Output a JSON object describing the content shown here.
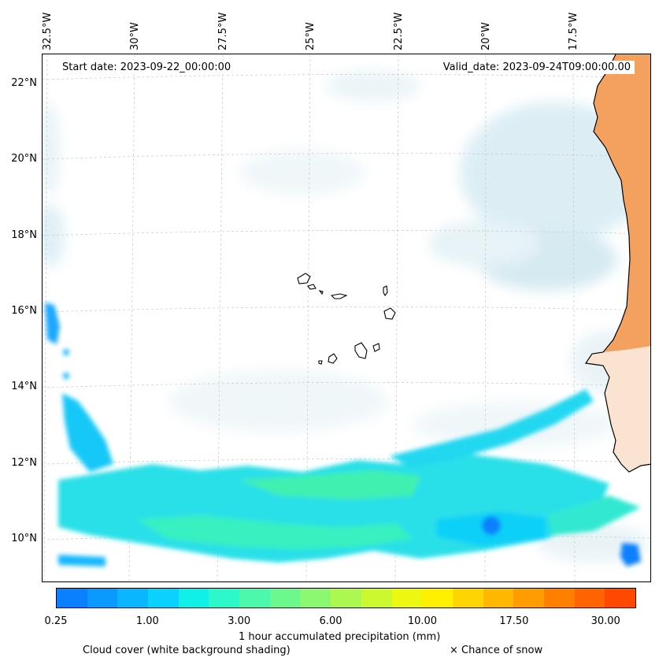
{
  "map": {
    "start_date": "Start date: 2023-09-22_00:00:00",
    "valid_date": "Valid_date: 2023-09-24T09:00:00.00",
    "lon_labels": [
      "32.5°W",
      "30°W",
      "27.5°W",
      "25°W",
      "22.5°W",
      "20°W",
      "17.5°W"
    ],
    "lat_labels": [
      "22°N",
      "20°N",
      "18°N",
      "16°N",
      "14°N",
      "12°N",
      "10°N"
    ],
    "colors": {
      "land": "#f4a15f",
      "coast": "#000000",
      "cloud": "#d6ecf3"
    }
  },
  "colorbar": {
    "colors": [
      "#0a80ff",
      "#0a9aff",
      "#0ab6ff",
      "#0ad2ff",
      "#10f0e8",
      "#2cf8cc",
      "#4cf8ac",
      "#6cf88c",
      "#8cf870",
      "#acf850",
      "#ccf830",
      "#ecf810",
      "#fff000",
      "#ffd400",
      "#ffb800",
      "#ff9c00",
      "#ff8000",
      "#ff6400",
      "#ff4800"
    ],
    "ticks": [
      "0.25",
      "1.00",
      "3.00",
      "6.00",
      "10.00",
      "17.50",
      "30.00"
    ],
    "label": "1 hour accumulated precipitation (mm)"
  },
  "legend": {
    "cloud_cover": "Cloud cover (white background shading)",
    "snow": "× Chance of snow"
  }
}
